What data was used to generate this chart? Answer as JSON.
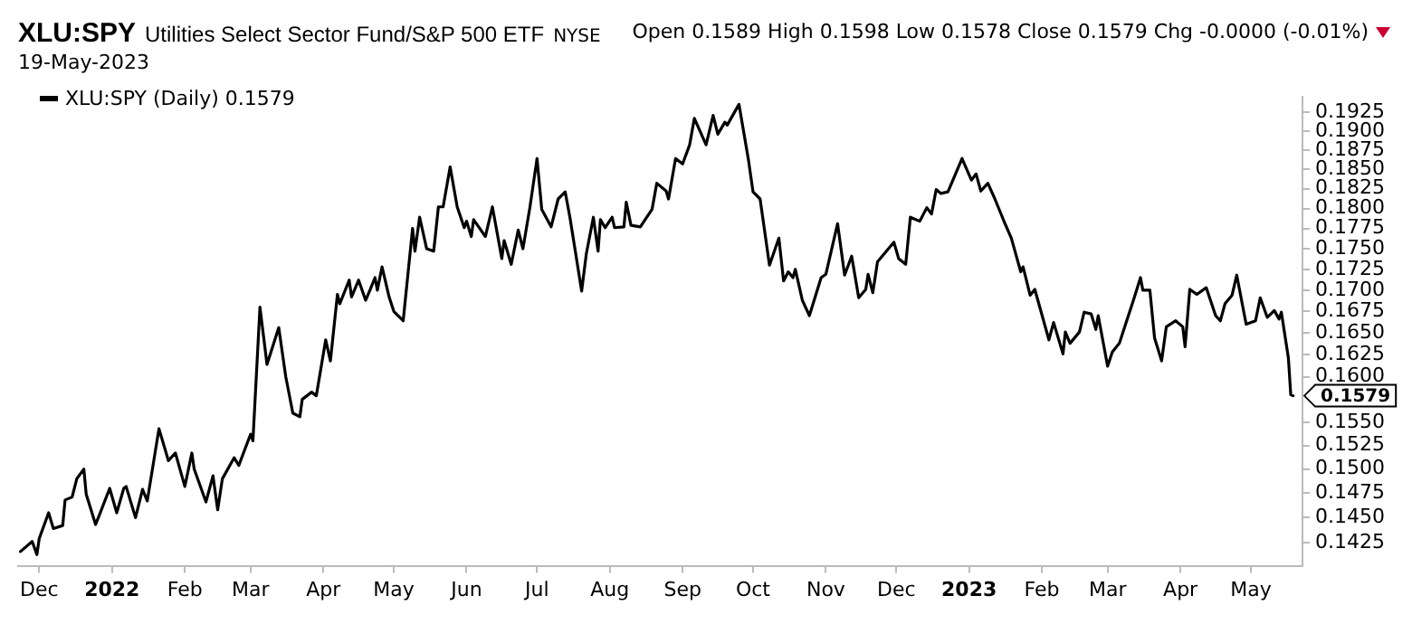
{
  "chart_data": {
    "type": "line",
    "title": "XLU:SPY",
    "subtitle": "Utilities Select Sector Fund/S&P 500 ETF",
    "annotations": [
      "NYSE",
      "19-May-2023",
      "Open 0.1589 High 0.1598 Low 0.1578 Close 0.1579 Chg -0.0000 (-0.01%)",
      {
        "text": "0.1579",
        "x": "2023-05-19",
        "y": 0.1579
      }
    ],
    "x": [
      "2021-11-23",
      "2021-11-28",
      "2021-11-30",
      "2021-12-01",
      "2021-12-05",
      "2021-12-07",
      "2021-12-11",
      "2021-12-12",
      "2021-12-15",
      "2021-12-17",
      "2021-12-20",
      "2021-12-21",
      "2021-12-25",
      "2021-12-27",
      "2021-12-31",
      "2022-01-03",
      "2022-01-06",
      "2022-01-07",
      "2022-01-11",
      "2022-01-14",
      "2022-01-16",
      "2022-01-21",
      "2022-01-25",
      "2022-01-28",
      "2022-02-01",
      "2022-02-04",
      "2022-02-05",
      "2022-02-10",
      "2022-02-13",
      "2022-02-15",
      "2022-02-17",
      "2022-02-22",
      "2022-02-24",
      "2022-03-01",
      "2022-03-02",
      "2022-03-05",
      "2022-03-08",
      "2022-03-13",
      "2022-03-16",
      "2022-03-19",
      "2022-03-22",
      "2022-03-23",
      "2022-03-27",
      "2022-03-29",
      "2022-04-02",
      "2022-04-04",
      "2022-04-07",
      "2022-04-08",
      "2022-04-12",
      "2022-04-13",
      "2022-04-16",
      "2022-04-19",
      "2022-04-21",
      "2022-04-23",
      "2022-04-24",
      "2022-04-26",
      "2022-04-29",
      "2022-05-01",
      "2022-05-05",
      "2022-05-09",
      "2022-05-10",
      "2022-05-12",
      "2022-05-15",
      "2022-05-18",
      "2022-05-20",
      "2022-05-22",
      "2022-05-25",
      "2022-05-28",
      "2022-05-31",
      "2022-06-01",
      "2022-06-03",
      "2022-06-04",
      "2022-06-09",
      "2022-06-12",
      "2022-06-16",
      "2022-06-17",
      "2022-06-20",
      "2022-06-23",
      "2022-06-25",
      "2022-06-28",
      "2022-07-01",
      "2022-07-03",
      "2022-07-07",
      "2022-07-10",
      "2022-07-13",
      "2022-07-15",
      "2022-07-20",
      "2022-07-22",
      "2022-07-25",
      "2022-07-27",
      "2022-07-28",
      "2022-07-30",
      "2022-08-02",
      "2022-08-03",
      "2022-08-07",
      "2022-08-08",
      "2022-08-10",
      "2022-08-14",
      "2022-08-19",
      "2022-08-21",
      "2022-08-25",
      "2022-08-26",
      "2022-08-29",
      "2022-09-01",
      "2022-09-04",
      "2022-09-06",
      "2022-09-11",
      "2022-09-14",
      "2022-09-16",
      "2022-09-19",
      "2022-09-20",
      "2022-09-25",
      "2022-09-29",
      "2022-10-01",
      "2022-10-04",
      "2022-10-08",
      "2022-10-12",
      "2022-10-14",
      "2022-10-16",
      "2022-10-18",
      "2022-10-19",
      "2022-10-22",
      "2022-10-25",
      "2022-10-30",
      "2022-11-01",
      "2022-11-06",
      "2022-11-09",
      "2022-11-12",
      "2022-11-15",
      "2022-11-18",
      "2022-11-19",
      "2022-11-21",
      "2022-11-23",
      "2022-11-30",
      "2022-12-02",
      "2022-12-05",
      "2022-12-07",
      "2022-12-11",
      "2022-12-14",
      "2022-12-16",
      "2022-12-18",
      "2022-12-20",
      "2022-12-23",
      "2022-12-29",
      "2023-01-02",
      "2023-01-04",
      "2023-01-06",
      "2023-01-09",
      "2023-01-12",
      "2023-01-16",
      "2023-01-19",
      "2023-01-23",
      "2023-01-24",
      "2023-01-27",
      "2023-01-29",
      "2023-02-04",
      "2023-02-06",
      "2023-02-10",
      "2023-02-11",
      "2023-02-13",
      "2023-02-17",
      "2023-02-19",
      "2023-02-22",
      "2023-02-24",
      "2023-02-25",
      "2023-03-01",
      "2023-03-03",
      "2023-03-06",
      "2023-03-09",
      "2023-03-12",
      "2023-03-15",
      "2023-03-16",
      "2023-03-19",
      "2023-03-21",
      "2023-03-24",
      "2023-03-26",
      "2023-03-30",
      "2023-04-02",
      "2023-04-03",
      "2023-04-05",
      "2023-04-08",
      "2023-04-12",
      "2023-04-16",
      "2023-04-18",
      "2023-04-20",
      "2023-04-23",
      "2023-04-25",
      "2023-04-29",
      "2023-05-03",
      "2023-05-05",
      "2023-05-08",
      "2023-05-11",
      "2023-05-13",
      "2023-05-14",
      "2023-05-17",
      "2023-05-18",
      "2023-05-19"
    ],
    "series": [
      {
        "name": "XLU:SPY (Daily) 0.1579",
        "color": "#000000",
        "values": [
          0.1416,
          0.1426,
          0.1413,
          0.1429,
          0.1455,
          0.1439,
          0.1442,
          0.1468,
          0.1471,
          0.149,
          0.15,
          0.1474,
          0.1443,
          0.1455,
          0.148,
          0.1455,
          0.148,
          0.1482,
          0.145,
          0.1479,
          0.1467,
          0.1543,
          0.1509,
          0.1517,
          0.1482,
          0.1517,
          0.15,
          0.1466,
          0.1493,
          0.1458,
          0.149,
          0.1512,
          0.1504,
          0.1537,
          0.153,
          0.168,
          0.1614,
          0.1656,
          0.16,
          0.156,
          0.1556,
          0.1575,
          0.1583,
          0.1579,
          0.1642,
          0.1618,
          0.1695,
          0.1684,
          0.1712,
          0.1692,
          0.1712,
          0.1688,
          0.1701,
          0.1715,
          0.17,
          0.1728,
          0.1692,
          0.1675,
          0.1664,
          0.1775,
          0.1747,
          0.1789,
          0.175,
          0.1747,
          0.1802,
          0.1802,
          0.1853,
          0.1802,
          0.1776,
          0.1784,
          0.1765,
          0.1786,
          0.1765,
          0.1802,
          0.1738,
          0.176,
          0.1731,
          0.1773,
          0.175,
          0.1802,
          0.1864,
          0.1799,
          0.1777,
          0.1812,
          0.1821,
          0.1789,
          0.1699,
          0.1744,
          0.1789,
          0.1747,
          0.1786,
          0.1776,
          0.1789,
          0.1776,
          0.1777,
          0.1808,
          0.1779,
          0.1777,
          0.1799,
          0.1832,
          0.1822,
          0.1812,
          0.1864,
          0.1857,
          0.1882,
          0.1917,
          0.1882,
          0.1921,
          0.1896,
          0.1912,
          0.1908,
          0.1936,
          0.1863,
          0.1821,
          0.1812,
          0.173,
          0.1763,
          0.1711,
          0.1722,
          0.1715,
          0.1725,
          0.1688,
          0.167,
          0.1715,
          0.1719,
          0.1781,
          0.1718,
          0.1741,
          0.1691,
          0.1701,
          0.1719,
          0.1697,
          0.1734,
          0.1758,
          0.1738,
          0.1731,
          0.1789,
          0.1784,
          0.1801,
          0.1793,
          0.1824,
          0.1819,
          0.1821,
          0.1864,
          0.1836,
          0.1844,
          0.1822,
          0.1832,
          0.1812,
          0.1783,
          0.1763,
          0.1722,
          0.1728,
          0.1694,
          0.1701,
          0.1642,
          0.1662,
          0.1626,
          0.1651,
          0.1638,
          0.1651,
          0.1674,
          0.1672,
          0.1654,
          0.167,
          0.1612,
          0.1628,
          0.1638,
          0.1663,
          0.1688,
          0.1715,
          0.17,
          0.17,
          0.1644,
          0.1618,
          0.1657,
          0.1664,
          0.1657,
          0.1634,
          0.1701,
          0.1695,
          0.1703,
          0.167,
          0.1664,
          0.1684,
          0.1694,
          0.1718,
          0.166,
          0.1664,
          0.1691,
          0.1668,
          0.1676,
          0.1666,
          0.1674,
          0.1621,
          0.158,
          0.1579
        ]
      }
    ],
    "xlim": [
      "2021-11-22",
      "2023-05-23"
    ],
    "xticks": [
      {
        "value": "2021-12-01",
        "label": "Dec"
      },
      {
        "value": "2022-01-01",
        "label": "2022"
      },
      {
        "value": "2022-02-01",
        "label": "Feb"
      },
      {
        "value": "2022-03-01",
        "label": "Mar"
      },
      {
        "value": "2022-04-01",
        "label": "Apr"
      },
      {
        "value": "2022-05-01",
        "label": "May"
      },
      {
        "value": "2022-06-01",
        "label": "Jun"
      },
      {
        "value": "2022-07-01",
        "label": "Jul"
      },
      {
        "value": "2022-08-01",
        "label": "Aug"
      },
      {
        "value": "2022-09-01",
        "label": "Sep"
      },
      {
        "value": "2022-10-01",
        "label": "Oct"
      },
      {
        "value": "2022-11-01",
        "label": "Nov"
      },
      {
        "value": "2022-12-01",
        "label": "Dec"
      },
      {
        "value": "2023-01-01",
        "label": "2023"
      },
      {
        "value": "2023-02-01",
        "label": "Feb"
      },
      {
        "value": "2023-03-01",
        "label": "Mar"
      },
      {
        "value": "2023-04-01",
        "label": "Apr"
      },
      {
        "value": "2023-05-01",
        "label": "May"
      }
    ],
    "ylim": [
      0.1402,
      0.1946
    ],
    "yticks": [
      0.1425,
      {
        "value": 0.145,
        "label": "0.1450"
      },
      0.1475,
      {
        "value": 0.15,
        "label": "0.1500"
      },
      0.1525,
      {
        "value": 0.155,
        "label": "0.1550"
      },
      {
        "value": 0.16,
        "label": "0.1600"
      },
      0.1625,
      {
        "value": 0.165,
        "label": "0.1650"
      },
      0.1675,
      {
        "value": 0.17,
        "label": "0.1700"
      },
      0.1725,
      {
        "value": 0.175,
        "label": "0.1750"
      },
      0.1775,
      {
        "value": 0.18,
        "label": "0.1800"
      },
      0.1825,
      {
        "value": 0.185,
        "label": "0.1850"
      },
      0.1875,
      {
        "value": 0.19,
        "label": "0.1900"
      },
      0.1925
    ],
    "log": true,
    "legend": "top left",
    "marker": "none",
    "line_style": "solid"
  }
}
